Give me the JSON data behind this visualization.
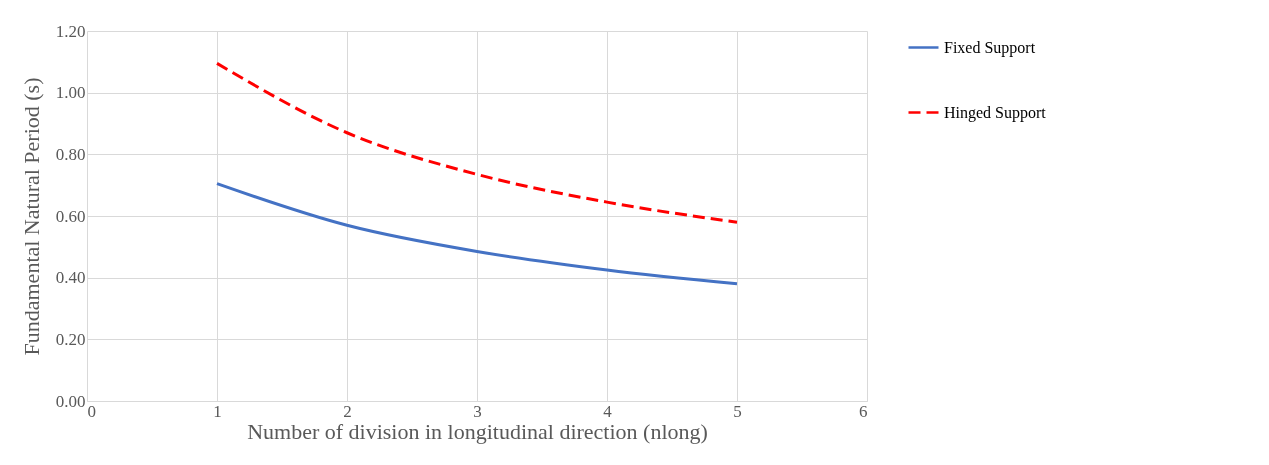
{
  "chart_data": {
    "type": "line",
    "xlabel": "Number of division in longitudinal direction (nlong)",
    "ylabel": "Fundamental Natural Period (s)",
    "x": [
      1,
      2,
      3,
      4,
      5
    ],
    "series": [
      {
        "name": "Fixed Support",
        "color": "#4472c4",
        "line_style": "solid",
        "values": [
          0.705,
          0.57,
          0.485,
          0.425,
          0.38
        ]
      },
      {
        "name": "Hinged Support",
        "color": "#ff0000",
        "line_style": "dashed",
        "values": [
          1.095,
          0.87,
          0.735,
          0.645,
          0.58
        ]
      }
    ],
    "xlim": [
      0,
      6
    ],
    "xticks": [
      0,
      1,
      2,
      3,
      4,
      5,
      6
    ],
    "ylim": [
      0,
      1.2
    ],
    "yticks": [
      {
        "value": 0,
        "label": "0.00"
      },
      {
        "value": 0.2,
        "label": "0.20"
      },
      {
        "value": 0.4,
        "label": "0.40"
      },
      {
        "value": 0.6,
        "label": "0.60"
      },
      {
        "value": 0.8,
        "label": "0.80"
      },
      {
        "value": 1.0,
        "label": "1.00"
      },
      {
        "value": 1.2,
        "label": "1.20"
      }
    ],
    "grid": true,
    "legend": "right",
    "marker": "none"
  }
}
